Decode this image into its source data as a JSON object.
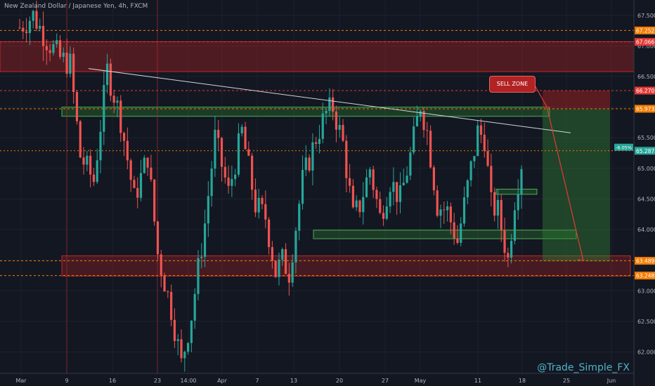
{
  "header": {
    "title": "New Zealand Dollar / Japanese Yen, 4h, FXCM"
  },
  "watermark": "@Trade_Simple_FX",
  "annotation": {
    "sell_zone_label": "SELL ZONE"
  },
  "colors": {
    "background": "#131722",
    "up": "#26a69a",
    "down": "#ef5350",
    "resistance_zone": "#c62828",
    "support_zone": "#2e7d32",
    "trendline": "#d1d4dc"
  },
  "chart_data": {
    "type": "candlestick",
    "title": "New Zealand Dollar / Japanese Yen, 4h, FXCM",
    "x_tick_labels": [
      "Mar",
      "9",
      "16",
      "23",
      "14:00",
      "Apr",
      "7",
      "13",
      "20",
      "27",
      "May",
      "11",
      "18",
      "25",
      "Jun"
    ],
    "y_tick_labels": [
      "67.500",
      "67.000",
      "66.500",
      "66.000",
      "65.500",
      "65.000",
      "64.500",
      "64.000",
      "63.500",
      "63.000",
      "62.500",
      "62.000"
    ],
    "ylim": [
      61.65,
      67.75
    ],
    "price_badges": [
      {
        "value": "67.252",
        "color": "#f57c00"
      },
      {
        "value": "67.066",
        "color": "#e53935"
      },
      {
        "value": "66.270",
        "color": "#e53935"
      },
      {
        "value": "65.973",
        "color": "#f57c00"
      },
      {
        "value": "63.489",
        "color": "#f57c00"
      },
      {
        "value": "63.248",
        "color": "#f57c00"
      }
    ],
    "current_price": "65.287",
    "current_change": "-6.05%",
    "zones": [
      {
        "name": "resistance",
        "y_low": 66.58,
        "y_high": 67.07
      },
      {
        "name": "upper-range",
        "y_low": 65.85,
        "y_high": 66.0
      },
      {
        "name": "mid-support",
        "y_low": 63.85,
        "y_high": 63.99
      },
      {
        "name": "support",
        "y_low": 63.24,
        "y_high": 63.57
      }
    ],
    "trendline": {
      "y_start": 66.63,
      "y_end": 65.58
    },
    "trade_box": {
      "stop": 66.27,
      "entry": 65.97,
      "target": 63.48
    },
    "price_path": [
      [
        0,
        67.3
      ],
      [
        4,
        67.5
      ],
      [
        8,
        67.1
      ],
      [
        12,
        66.8
      ],
      [
        15,
        66.7
      ],
      [
        18,
        65.2
      ],
      [
        22,
        64.8
      ],
      [
        26,
        66.6
      ],
      [
        30,
        65.8
      ],
      [
        34,
        64.5
      ],
      [
        38,
        65.2
      ],
      [
        41,
        63.6
      ],
      [
        45,
        62.7
      ],
      [
        48,
        61.8
      ],
      [
        51,
        62.6
      ],
      [
        55,
        64.1
      ],
      [
        58,
        65.5
      ],
      [
        62,
        64.6
      ],
      [
        66,
        65.6
      ],
      [
        70,
        64.4
      ],
      [
        73,
        64.2
      ],
      [
        76,
        63.3
      ],
      [
        78,
        63.5
      ],
      [
        80,
        63.3
      ],
      [
        84,
        64.8
      ],
      [
        88,
        65.5
      ],
      [
        91,
        65.9
      ],
      [
        93,
        66.0
      ],
      [
        96,
        65.4
      ],
      [
        99,
        64.2
      ],
      [
        101,
        64.4
      ],
      [
        104,
        65.0
      ],
      [
        107,
        64.2
      ],
      [
        110,
        64.8
      ],
      [
        113,
        64.5
      ],
      [
        116,
        65.2
      ],
      [
        119,
        66.05
      ],
      [
        121,
        65.6
      ],
      [
        124,
        64.4
      ],
      [
        127,
        64.3
      ],
      [
        130,
        63.8
      ],
      [
        133,
        64.7
      ],
      [
        136,
        65.6
      ],
      [
        138,
        65.5
      ],
      [
        140,
        64.4
      ],
      [
        142,
        64.3
      ],
      [
        145,
        63.5
      ],
      [
        147,
        64.5
      ],
      [
        149,
        65.1
      ]
    ]
  }
}
